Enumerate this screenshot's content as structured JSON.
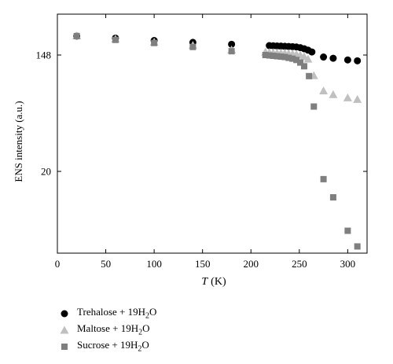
{
  "chart_data": {
    "type": "scatter",
    "xlabel": "T",
    "xlabel_unit": "(K)",
    "ylabel": "ENS intensity (a.u.)",
    "xlim": [
      0,
      320
    ],
    "x_ticks": [
      0,
      50,
      100,
      150,
      200,
      250,
      300
    ],
    "y_ticks": [
      148,
      20
    ],
    "grid": false,
    "legend_position": "bottom-left",
    "series": [
      {
        "name": "Trehalose + 19H2O",
        "marker": "circle",
        "color": "#000000",
        "x": [
          20,
          60,
          100,
          140,
          180,
          219,
          223,
          227,
          231,
          235,
          239,
          243,
          247,
          251,
          255,
          259,
          263,
          275,
          285,
          300,
          310
        ],
        "y": [
          205,
          198,
          190,
          184,
          178,
          174,
          173.5,
          173,
          172.5,
          172,
          171.5,
          171,
          170,
          168,
          165,
          161,
          156,
          143,
          140,
          136,
          134
        ]
      },
      {
        "name": "Maltose + 19H2O",
        "marker": "triangle",
        "color": "#c0c0c0",
        "x": [
          20,
          60,
          100,
          140,
          180,
          215,
          219,
          223,
          227,
          231,
          235,
          239,
          243,
          247,
          251,
          255,
          259,
          265,
          275,
          285,
          300,
          310
        ],
        "y": [
          206,
          195,
          185,
          175,
          162,
          156,
          155,
          154.5,
          154,
          153.5,
          153,
          152,
          151,
          150,
          148,
          144,
          138,
          104,
          80,
          75,
          71,
          69
        ]
      },
      {
        "name": "Sucrose + 19H2O",
        "marker": "square",
        "color": "#7f7f7f",
        "x": [
          20,
          60,
          100,
          140,
          180,
          215,
          219,
          223,
          227,
          231,
          235,
          239,
          243,
          247,
          251,
          255,
          260,
          265,
          275,
          285,
          300,
          310
        ],
        "y": [
          205,
          192,
          182,
          170,
          158,
          148,
          147,
          146,
          145,
          144,
          143,
          141,
          139,
          136,
          130,
          122,
          103,
          61,
          17.5,
          12.8,
          7.2,
          5.5
        ]
      }
    ]
  }
}
